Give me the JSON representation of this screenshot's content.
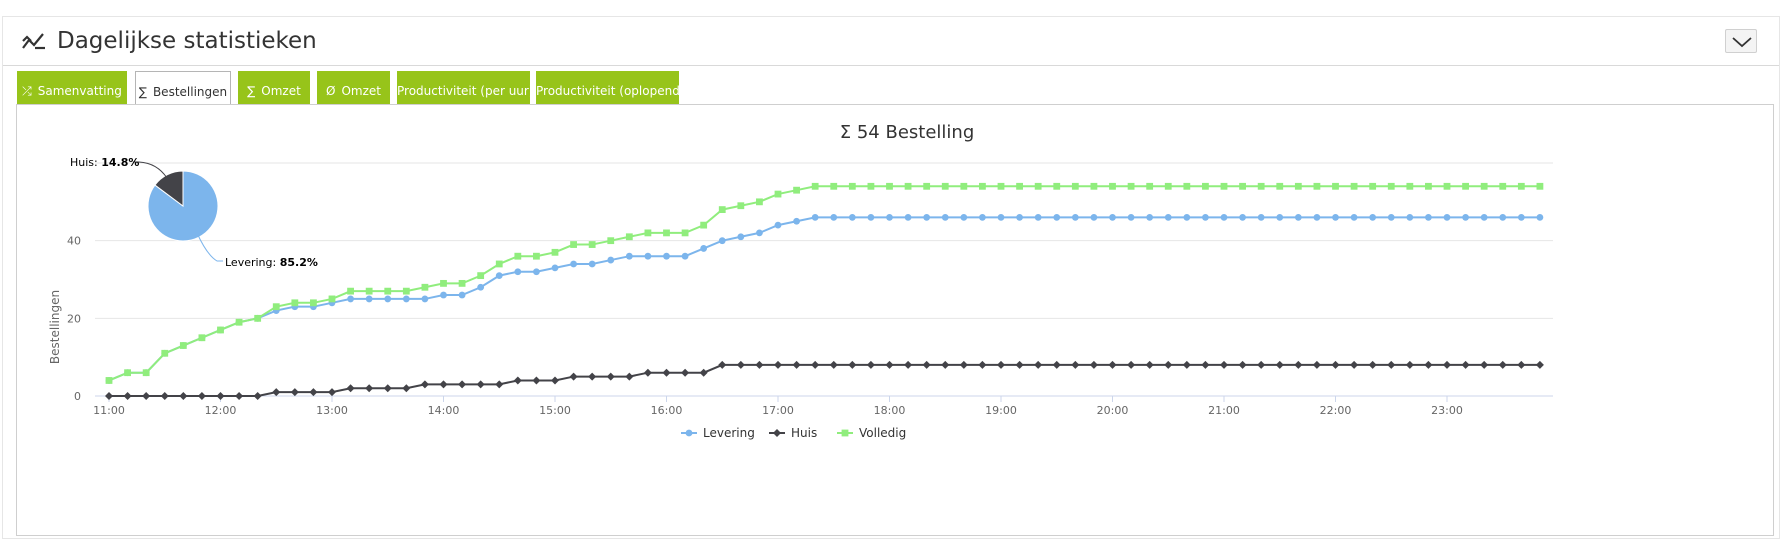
{
  "panel": {
    "title": "Dagelijkse statistieken",
    "icon": "chart-line-icon",
    "collapse_icon": "chevron-down-icon"
  },
  "tabs": [
    {
      "label": "Samenvatting",
      "icon": "shuffle-icon",
      "icon_glyph": "⤮",
      "active": false
    },
    {
      "label": "Bestellingen",
      "icon": "sigma-icon",
      "icon_glyph": "∑",
      "active": true
    },
    {
      "label": "Omzet",
      "icon": "sigma-icon",
      "icon_glyph": "∑",
      "active": false
    },
    {
      "label": "Omzet",
      "icon": "average-icon",
      "icon_glyph": "Ø",
      "active": false
    },
    {
      "label": "Productiviteit (per uur)",
      "icon": "",
      "icon_glyph": "",
      "active": false
    },
    {
      "label": "Productiviteit (oplopend)",
      "icon": "",
      "icon_glyph": "",
      "active": false
    }
  ],
  "colors": {
    "tab_green": "#97c41a",
    "levering": "#7cb5ec",
    "huis": "#434348",
    "volledig": "#90ed7d"
  },
  "chart_data": {
    "type": "line",
    "title": "Σ 54 Bestelling",
    "ylabel": "Bestellingen",
    "xlabel": "",
    "ylim": [
      0,
      60
    ],
    "yticks": [
      0,
      20,
      40
    ],
    "xticks": [
      "11:00",
      "12:00",
      "13:00",
      "14:00",
      "15:00",
      "16:00",
      "17:00",
      "18:00",
      "19:00",
      "20:00",
      "21:00",
      "22:00",
      "23:00"
    ],
    "x_start": "11:00",
    "x_step_minutes": 10,
    "legend_position": "bottom-center",
    "grid": true,
    "series": [
      {
        "name": "Levering",
        "marker": "circle",
        "color": "#7cb5ec",
        "values": [
          4,
          6,
          6,
          11,
          13,
          15,
          17,
          19,
          20,
          22,
          23,
          23,
          24,
          25,
          25,
          25,
          25,
          25,
          26,
          26,
          28,
          31,
          32,
          32,
          33,
          34,
          34,
          35,
          36,
          36,
          36,
          36,
          38,
          40,
          41,
          42,
          44,
          45,
          46,
          46,
          46,
          46,
          46,
          46,
          46,
          46,
          46,
          46,
          46,
          46,
          46,
          46,
          46,
          46,
          46,
          46,
          46,
          46,
          46,
          46,
          46,
          46,
          46,
          46,
          46,
          46,
          46,
          46,
          46,
          46,
          46,
          46,
          46,
          46,
          46,
          46,
          46,
          46
        ]
      },
      {
        "name": "Huis",
        "marker": "diamond",
        "color": "#434348",
        "values": [
          0,
          0,
          0,
          0,
          0,
          0,
          0,
          0,
          0,
          1,
          1,
          1,
          1,
          2,
          2,
          2,
          2,
          3,
          3,
          3,
          3,
          3,
          4,
          4,
          4,
          5,
          5,
          5,
          5,
          6,
          6,
          6,
          6,
          8,
          8,
          8,
          8,
          8,
          8,
          8,
          8,
          8,
          8,
          8,
          8,
          8,
          8,
          8,
          8,
          8,
          8,
          8,
          8,
          8,
          8,
          8,
          8,
          8,
          8,
          8,
          8,
          8,
          8,
          8,
          8,
          8,
          8,
          8,
          8,
          8,
          8,
          8,
          8,
          8,
          8,
          8,
          8,
          8
        ]
      },
      {
        "name": "Volledig",
        "marker": "square",
        "color": "#90ed7d",
        "values": [
          4,
          6,
          6,
          11,
          13,
          15,
          17,
          19,
          20,
          23,
          24,
          24,
          25,
          27,
          27,
          27,
          27,
          28,
          29,
          29,
          31,
          34,
          36,
          36,
          37,
          39,
          39,
          40,
          41,
          42,
          42,
          42,
          44,
          48,
          49,
          50,
          52,
          53,
          54,
          54,
          54,
          54,
          54,
          54,
          54,
          54,
          54,
          54,
          54,
          54,
          54,
          54,
          54,
          54,
          54,
          54,
          54,
          54,
          54,
          54,
          54,
          54,
          54,
          54,
          54,
          54,
          54,
          54,
          54,
          54,
          54,
          54,
          54,
          54,
          54,
          54,
          54,
          54
        ]
      }
    ],
    "pie": {
      "type": "pie",
      "slices": [
        {
          "name": "Levering",
          "value": 85.2,
          "label": "Levering:",
          "pct_label": "85.2%",
          "color": "#7cb5ec"
        },
        {
          "name": "Huis",
          "value": 14.8,
          "label": "Huis:",
          "pct_label": "14.8%",
          "color": "#434348"
        }
      ]
    }
  }
}
